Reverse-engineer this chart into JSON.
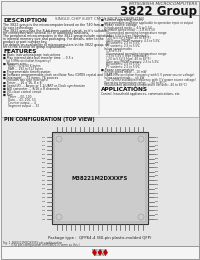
{
  "title_company": "MITSUBISHI MICROCOMPUTERS",
  "title_product": "3822 Group",
  "subtitle": "SINGLE-CHIP 8-BIT CMOS MICROCOMPUTER",
  "page_bg": "#f5f5f5",
  "description_title": "DESCRIPTION",
  "description_text": [
    "The 3822 group is the microcomputer based on the 740 fam-",
    "ily core technology.",
    "The 3822 group has the 8-bit timer control circuit, so it's suitable",
    "for connection with several I/O or additional functions.",
    "The peripheral microcomputers in the 3822 group include variations",
    "in internal memory size and packaging. For details, refer to the",
    "product or part number key.",
    "For details on availability of microcomputers in the 3822 group, re-",
    "fer to the section on group explanation."
  ],
  "features_title": "FEATURES",
  "features": [
    [
      "bullet",
      "Basic instructions/page instructions"
    ],
    [
      "bullet",
      "Max internal data bus transfer time ... 0.5 s"
    ],
    [
      "indent",
      "(at 5 MHz oscillation frequency)"
    ],
    [
      "squarebullet",
      "Memory size:"
    ],
    [
      "indent2",
      "ROM ... 4 to 60 K bytes"
    ],
    [
      "indent2",
      "RAM ... 192 to 512 bytes"
    ],
    [
      "squarebullet",
      "Programmable timer/counter"
    ],
    [
      "squarebullet",
      "Software programmable clock oscillator Fosc (CMOS crystal and 3.58)"
    ],
    [
      "squarebullet",
      "Interrupts ... 31 items, 76 sources"
    ],
    [
      "indent",
      "(includes two type interrupts)"
    ],
    [
      "squarebullet",
      "Timer ... 16 x 16, 8 x 8"
    ],
    [
      "squarebullet",
      "Serial I/O ... Async or 1-2/UART or Clock synchronize"
    ],
    [
      "squarebullet",
      "A/D converter ... 8/16 x 8 channels"
    ],
    [
      "squarebullet",
      "I/O-close control circuit"
    ],
    [
      "squarebullet",
      "Port"
    ],
    [
      "indent2",
      "Timer ... 00, 100"
    ],
    [
      "indent2",
      "Data ... 43, 100, 53"
    ],
    [
      "indent2",
      "Counter output ... 4"
    ],
    [
      "indent2",
      "Segment output ... 32"
    ]
  ],
  "right_col": [
    [
      "squarebullet",
      "Current operating circuits"
    ],
    [
      "indent",
      "programmable oscillator applicable to operation input or output"
    ],
    [
      "squarebullet",
      "Power source voltage"
    ],
    [
      "indent",
      "In high-speed mode ... 4.5 to 5.5V"
    ],
    [
      "indent",
      "In middle speed mode ... 1.8 to 5.5V"
    ],
    [
      "indent2",
      "(Guaranteed operating temperature range:"
    ],
    [
      "indent2",
      "2.5 to 5.5V 5 type [Standard])"
    ],
    [
      "indent2",
      "(-20 to 5.5V 5 type -40 to 85°F)"
    ],
    [
      "indent2",
      "(85% max PROM memory: 4.5 to 5.5V;"
    ],
    [
      "indent2",
      "All variants: 2.5 to 5.5V;"
    ],
    [
      "indent2",
      "PT variants: 2.5 to 5.5V;"
    ],
    [
      "indent",
      "In low speed modes"
    ],
    [
      "indent2",
      "1.8 to 5.5V"
    ],
    [
      "indent2",
      "(Guaranteed operating temperature range:"
    ],
    [
      "indent2",
      "1.5 to 5.5V 5 type [Standard])"
    ],
    [
      "indent2",
      "(-20 to 5.5V 5 type -40 to 85°F)"
    ],
    [
      "indent2",
      "(One way PROM memory: 2.5 to 5.5V;"
    ],
    [
      "indent2",
      "All variants: 2.5 to 5.5V;"
    ],
    [
      "indent2",
      "PT variants: 2.5 to 5.5V;"
    ]
  ],
  "power_section": [
    [
      "squarebullet",
      "Power consumption"
    ],
    [
      "indent",
      "In high speed mode ... 10 mW"
    ],
    [
      "indent2",
      "(at 5 MHz oscillation frequency with 5 V power source voltage)"
    ],
    [
      "indent",
      "In low speed mode ... <5 pW"
    ],
    [
      "indent2",
      "(at 32 kHz oscillation frequency with 3 V power source voltage)"
    ]
  ],
  "temp_section": [
    [
      "indent",
      "Operating temperature range ... -40 to 85°C"
    ],
    [
      "indent2",
      "(Guaranteed operating temperature variants: -40 to 85°C)"
    ]
  ],
  "applications_title": "APPLICATIONS",
  "applications_text": "Control, household appliances, communications, etc.",
  "pin_section_title": "PIN CONFIGURATION (TOP VIEW)",
  "chip_label": "M38221M2DXXXFS",
  "package_text": "Package type :  QFP64-4 (80-pin plastic-molded QFP)",
  "fig_caption": "Fig. 1  M38221M2DXXXFS pin configuration",
  "fig_caption2": "         (The pin configuration of M38221 is same as this.)",
  "n_pins_tb": 20,
  "n_pins_lr": 20
}
